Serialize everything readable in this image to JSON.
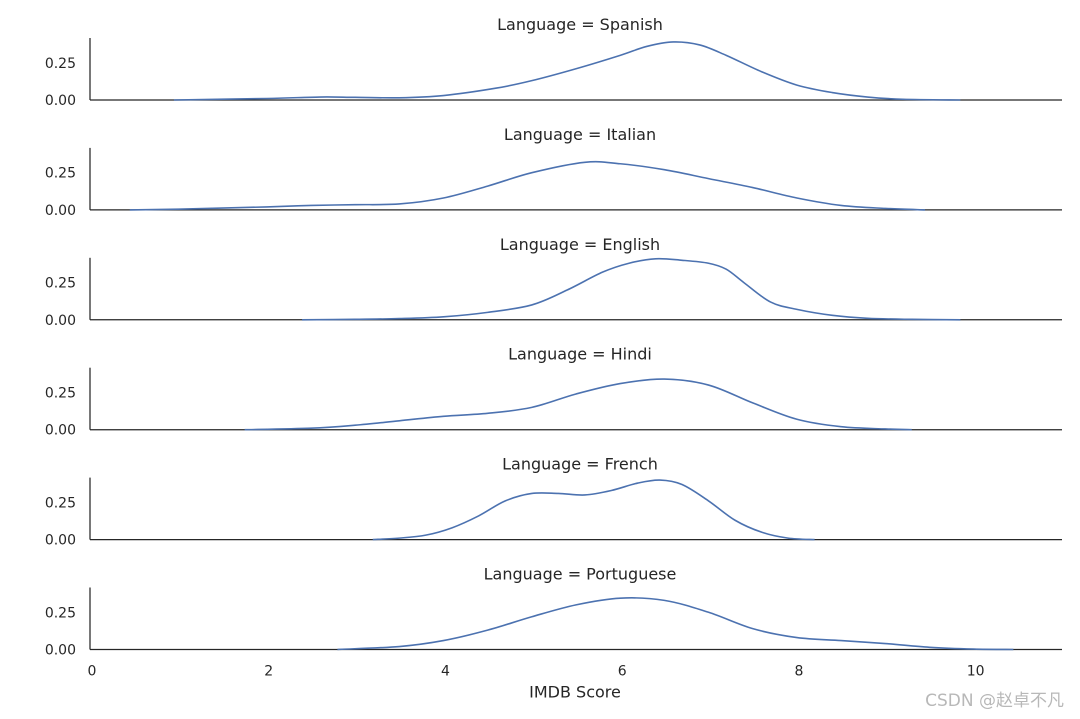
{
  "chart_data": {
    "type": "line",
    "subtype": "kde-facet-grid",
    "xlabel": "IMDB Score",
    "x_ticks": [
      0,
      2,
      4,
      6,
      8,
      10
    ],
    "xlim": [
      0,
      11
    ],
    "y_ticks": [
      0,
      0.25
    ],
    "y_tick_labels": [
      "0.00",
      "0.25"
    ],
    "ylim": [
      0,
      0.43
    ],
    "line_color": "#4c72b0",
    "grid": false,
    "panels": [
      {
        "title": "Language = Spanish",
        "x": [
          0.95,
          2.0,
          2.6,
          3.0,
          3.5,
          4.0,
          4.6,
          5.0,
          5.5,
          6.0,
          6.3,
          6.6,
          6.9,
          7.2,
          7.6,
          8.0,
          8.4,
          8.8,
          9.2,
          9.85
        ],
        "y": [
          0.0,
          0.01,
          0.02,
          0.018,
          0.015,
          0.03,
          0.08,
          0.13,
          0.21,
          0.3,
          0.36,
          0.39,
          0.37,
          0.3,
          0.19,
          0.1,
          0.05,
          0.02,
          0.005,
          0.0
        ]
      },
      {
        "title": "Language = Italian",
        "x": [
          0.45,
          1.0,
          2.0,
          2.5,
          3.0,
          3.5,
          4.0,
          4.5,
          5.0,
          5.6,
          6.0,
          6.5,
          7.0,
          7.5,
          8.0,
          8.5,
          9.0,
          9.45
        ],
        "y": [
          0.0,
          0.005,
          0.02,
          0.03,
          0.035,
          0.04,
          0.08,
          0.16,
          0.25,
          0.32,
          0.31,
          0.27,
          0.21,
          0.15,
          0.08,
          0.03,
          0.01,
          0.0
        ]
      },
      {
        "title": "Language = English",
        "x": [
          2.4,
          3.0,
          3.5,
          4.0,
          4.5,
          5.0,
          5.4,
          5.8,
          6.1,
          6.4,
          6.7,
          7.0,
          7.2,
          7.4,
          7.7,
          8.0,
          8.4,
          8.8,
          9.3,
          9.85
        ],
        "y": [
          0.0,
          0.003,
          0.008,
          0.02,
          0.05,
          0.1,
          0.2,
          0.32,
          0.38,
          0.41,
          0.4,
          0.38,
          0.34,
          0.25,
          0.12,
          0.07,
          0.03,
          0.01,
          0.003,
          0.0
        ]
      },
      {
        "title": "Language = Hindi",
        "x": [
          1.75,
          2.5,
          3.0,
          3.5,
          4.0,
          4.5,
          5.0,
          5.5,
          6.0,
          6.5,
          7.0,
          7.5,
          8.0,
          8.5,
          9.0,
          9.3
        ],
        "y": [
          0.0,
          0.01,
          0.03,
          0.06,
          0.09,
          0.11,
          0.15,
          0.24,
          0.31,
          0.34,
          0.3,
          0.18,
          0.07,
          0.02,
          0.005,
          0.0
        ]
      },
      {
        "title": "Language = French",
        "x": [
          3.2,
          3.5,
          3.8,
          4.1,
          4.4,
          4.7,
          5.0,
          5.3,
          5.6,
          5.9,
          6.2,
          6.45,
          6.7,
          7.0,
          7.3,
          7.6,
          7.9,
          8.2
        ],
        "y": [
          0.0,
          0.01,
          0.03,
          0.08,
          0.16,
          0.26,
          0.31,
          0.31,
          0.3,
          0.33,
          0.38,
          0.4,
          0.37,
          0.26,
          0.13,
          0.05,
          0.01,
          0.0
        ]
      },
      {
        "title": "Language = Portuguese",
        "x": [
          2.8,
          3.5,
          4.0,
          4.5,
          5.0,
          5.5,
          6.0,
          6.5,
          7.0,
          7.5,
          8.0,
          8.5,
          9.0,
          9.5,
          10.0,
          10.45
        ],
        "y": [
          0.0,
          0.02,
          0.06,
          0.13,
          0.22,
          0.3,
          0.345,
          0.33,
          0.25,
          0.14,
          0.08,
          0.06,
          0.04,
          0.015,
          0.003,
          0.0
        ]
      }
    ]
  },
  "watermark": "CSDN @赵卓不凡"
}
